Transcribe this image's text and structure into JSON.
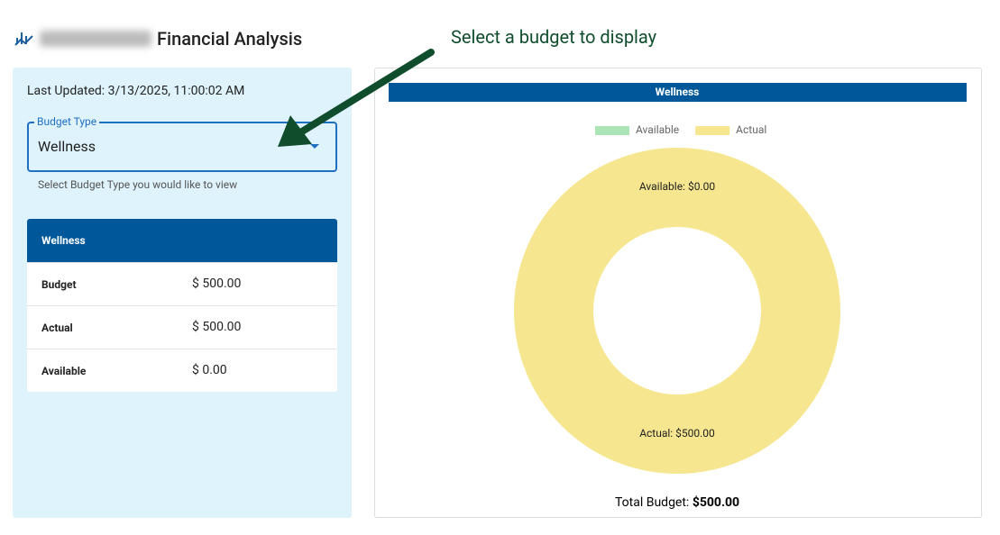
{
  "header": {
    "title": "Financial Analysis"
  },
  "annotation": "Select a budget to display",
  "sidebar": {
    "last_updated": "Last Updated: 3/13/2025, 11:00:02 AM",
    "select_label": "Budget Type",
    "select_value": "Wellness",
    "helper": "Select Budget Type you would like to view",
    "table": {
      "title": "Wellness",
      "rows": [
        [
          "Budget",
          "$ 500.00"
        ],
        [
          "Actual",
          "$ 500.00"
        ],
        [
          "Available",
          "$ 0.00"
        ]
      ]
    }
  },
  "chart_data": {
    "type": "donut",
    "title": "Wellness",
    "categories": [
      "Available",
      "Actual"
    ],
    "values": [
      0,
      500
    ],
    "value_labels": [
      "Available: $0.00",
      "Actual: $500.00"
    ],
    "colors": [
      "#abe5b5",
      "#f5e68f"
    ],
    "footer_label": "Total Budget:",
    "footer_value": "$500.00"
  }
}
